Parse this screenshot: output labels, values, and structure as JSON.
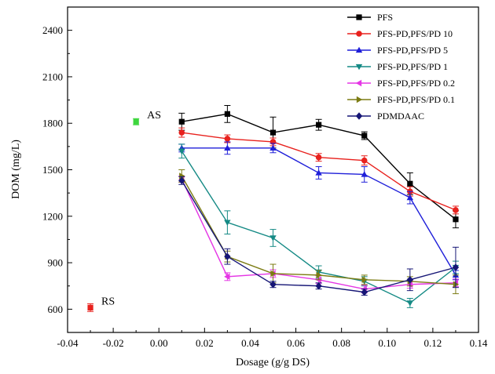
{
  "chart_data": {
    "type": "line",
    "xlabel": "Dosage (g/g DS)",
    "ylabel": "DOM (mg/L)",
    "xlim": [
      -0.04,
      0.14
    ],
    "ylim": [
      450,
      2550
    ],
    "xticks": [
      -0.04,
      -0.02,
      0.0,
      0.02,
      0.04,
      0.06,
      0.08,
      0.1,
      0.12,
      0.14
    ],
    "xtick_labels": [
      "-0.04",
      "-0.02",
      "0.00",
      "0.02",
      "0.04",
      "0.06",
      "0.08",
      "0.10",
      "0.12",
      "0.14"
    ],
    "yticks": [
      600,
      900,
      1200,
      1500,
      1800,
      2100,
      2400
    ],
    "ytick_labels": [
      "600",
      "900",
      "1200",
      "1500",
      "1800",
      "2100",
      "2400"
    ],
    "legend_position": "top-right",
    "x": [
      0.01,
      0.03,
      0.05,
      0.07,
      0.09,
      0.11,
      0.13
    ],
    "series": [
      {
        "name": "PFS",
        "color": "#000000",
        "marker": "square",
        "values": [
          1810,
          1860,
          1740,
          1790,
          1720,
          1410,
          1180
        ],
        "errors": [
          55,
          55,
          100,
          35,
          25,
          70,
          55
        ]
      },
      {
        "name": "PFS-PD,PFS/PD 10",
        "color": "#e8211d",
        "marker": "circle",
        "values": [
          1740,
          1700,
          1680,
          1580,
          1560,
          1360,
          1240
        ],
        "errors": [
          30,
          25,
          25,
          25,
          30,
          30,
          25
        ]
      },
      {
        "name": "PFS-PD,PFS/PD 5",
        "color": "#1f1fd9",
        "marker": "triangle-up",
        "values": [
          1640,
          1640,
          1640,
          1480,
          1470,
          1320,
          820
        ],
        "errors": [
          25,
          40,
          30,
          40,
          50,
          40,
          30
        ]
      },
      {
        "name": "PFS-PD,PFS/PD 1",
        "color": "#158a85",
        "marker": "triangle-down",
        "values": [
          1620,
          1160,
          1060,
          840,
          780,
          640,
          870
        ],
        "errors": [
          45,
          75,
          55,
          40,
          30,
          30,
          40
        ]
      },
      {
        "name": "PFS-PD,PFS/PD 0.2",
        "color": "#e536e5",
        "marker": "triangle-left",
        "values": [
          1440,
          810,
          830,
          790,
          730,
          760,
          770
        ],
        "errors": [
          20,
          25,
          25,
          25,
          25,
          25,
          25
        ]
      },
      {
        "name": "PFS-PD,PFS/PD 0.1",
        "color": "#7c7c13",
        "marker": "triangle-right",
        "values": [
          1460,
          940,
          830,
          820,
          790,
          780,
          760
        ],
        "errors": [
          40,
          35,
          60,
          30,
          30,
          30,
          60
        ]
      },
      {
        "name": "PDMDAAC",
        "color": "#161676",
        "marker": "diamond",
        "values": [
          1430,
          940,
          760,
          750,
          710,
          790,
          870
        ],
        "errors": [
          25,
          50,
          20,
          20,
          20,
          70,
          130
        ]
      }
    ],
    "extra_points": [
      {
        "label": "AS",
        "x": -0.01,
        "y": 1810,
        "error": 20,
        "color": "#3dd63d",
        "marker": "square"
      },
      {
        "label": "RS",
        "x": -0.03,
        "y": 610,
        "error": 25,
        "color": "#e8211d",
        "marker": "square"
      }
    ]
  }
}
